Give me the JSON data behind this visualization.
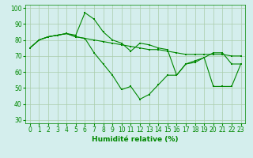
{
  "line1": [
    75,
    80,
    82,
    83,
    84,
    83,
    97,
    93,
    85,
    80,
    78,
    73,
    78,
    77,
    75,
    74,
    58,
    65,
    67,
    69,
    72,
    72,
    65,
    65
  ],
  "line2": [
    75,
    80,
    82,
    83,
    84,
    82,
    81,
    80,
    79,
    78,
    77,
    76,
    75,
    74,
    74,
    73,
    72,
    71,
    71,
    71,
    71,
    71,
    70,
    70
  ],
  "line3": [
    75,
    80,
    82,
    83,
    84,
    82,
    81,
    72,
    65,
    58,
    49,
    51,
    43,
    46,
    52,
    58,
    58,
    65,
    66,
    69,
    51,
    51,
    51,
    65
  ],
  "x": [
    0,
    1,
    2,
    3,
    4,
    5,
    6,
    7,
    8,
    9,
    10,
    11,
    12,
    13,
    14,
    15,
    16,
    17,
    18,
    19,
    20,
    21,
    22,
    23
  ],
  "xlabel": "Humidité relative (%)",
  "ylim": [
    28,
    102
  ],
  "xlim": [
    -0.5,
    23.5
  ],
  "yticks": [
    30,
    40,
    50,
    60,
    70,
    80,
    90,
    100
  ],
  "xticks": [
    0,
    1,
    2,
    3,
    4,
    5,
    6,
    7,
    8,
    9,
    10,
    11,
    12,
    13,
    14,
    15,
    16,
    17,
    18,
    19,
    20,
    21,
    22,
    23
  ],
  "line_color": "#008800",
  "bg_color": "#d4eeed",
  "grid_color": "#aaccaa",
  "tick_fontsize": 5.5,
  "xlabel_fontsize": 6.5
}
